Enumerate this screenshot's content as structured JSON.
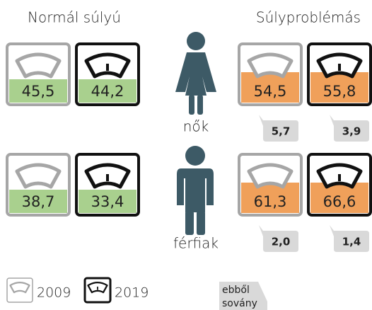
{
  "headings": {
    "normal": "Normál súlyú",
    "problem": "Súlyproblémás"
  },
  "groups": [
    {
      "label": "nők",
      "normal": [
        "45,5",
        "44,2"
      ],
      "problem": [
        "54,5",
        "55,8"
      ],
      "thin": [
        "5,7",
        "3,9"
      ]
    },
    {
      "label": "férfiak",
      "normal": [
        "38,7",
        "33,4"
      ],
      "problem": [
        "61,3",
        "66,6"
      ],
      "thin": [
        "2,0",
        "1,4"
      ]
    }
  ],
  "legend": [
    "2009",
    "2019"
  ],
  "note": [
    "ebből",
    "sovány"
  ]
}
